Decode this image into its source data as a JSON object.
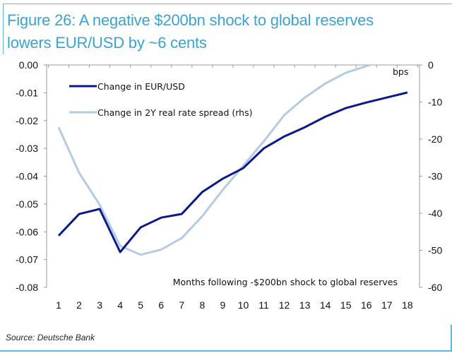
{
  "title_line1": "Figure 26:  A negative $200bn shock to global reserves",
  "title_line2": "lowers EUR/USD by ~6 cents",
  "source": "Source: Deutsche Bank",
  "colors": {
    "accent": "#3aa3d2",
    "series_dark": "#0a1a8c",
    "series_light": "#b4cbe3",
    "axis": "#999999"
  },
  "chart_data": {
    "type": "line",
    "title": "A negative $200bn shock to global reserves lowers EUR/USD by ~6 cents",
    "xlabel": "Months following -$200bn shock to global reserves",
    "ylabel": "",
    "y2label": "bps",
    "categories": [
      "1",
      "2",
      "3",
      "4",
      "5",
      "6",
      "7",
      "8",
      "9",
      "10",
      "11",
      "12",
      "13",
      "14",
      "15",
      "16",
      "17",
      "18"
    ],
    "ylim": [
      -0.08,
      0.0
    ],
    "y2lim": [
      -60,
      0
    ],
    "yticks": [
      "0.00",
      "-0.01",
      "-0.02",
      "-0.03",
      "-0.04",
      "-0.05",
      "-0.06",
      "-0.07",
      "-0.08"
    ],
    "y2ticks": [
      "0",
      "-10",
      "-20",
      "-30",
      "-40",
      "-50",
      "-60"
    ],
    "grid": false,
    "legend_position": "top-left",
    "series": [
      {
        "name": "Change in EUR/USD",
        "axis": "left",
        "values": [
          -0.0614,
          -0.0536,
          -0.0518,
          -0.0673,
          -0.0584,
          -0.0549,
          -0.0536,
          -0.0457,
          -0.0409,
          -0.0371,
          -0.03,
          -0.0257,
          -0.0224,
          -0.0186,
          -0.0155,
          -0.0135,
          -0.0117,
          -0.0099
        ]
      },
      {
        "name": "Change in 2Y real rate spread (rhs)",
        "axis": "right",
        "values": [
          -16.8,
          -29.1,
          -37.7,
          -48.8,
          -51.2,
          -49.8,
          -46.7,
          -40.8,
          -33.7,
          -27.2,
          -20.6,
          -13.5,
          -8.8,
          -5.0,
          -2.1,
          -0.3,
          1.5,
          3.0
        ]
      }
    ]
  }
}
